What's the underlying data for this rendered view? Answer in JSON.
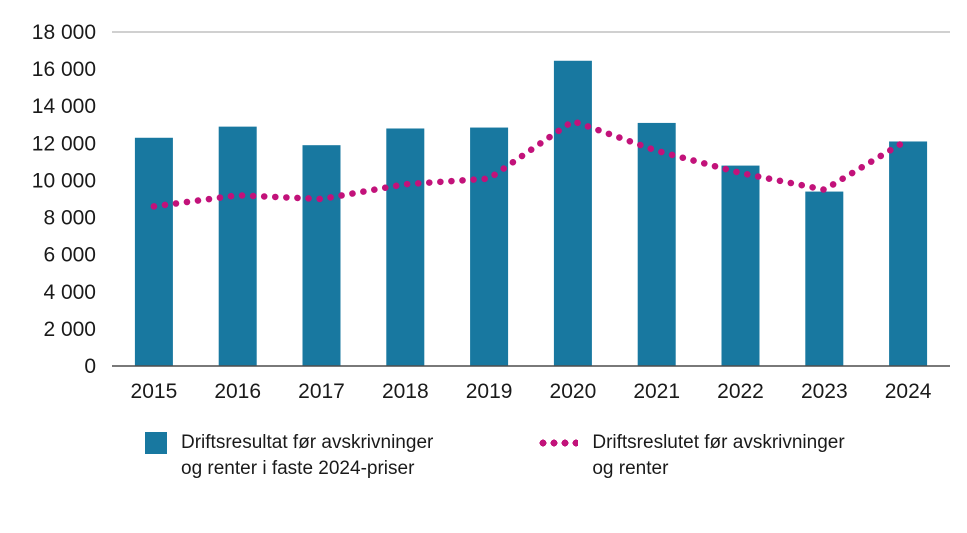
{
  "chart_data": {
    "type": "bar",
    "categories": [
      "2015",
      "2016",
      "2017",
      "2018",
      "2019",
      "2020",
      "2021",
      "2022",
      "2023",
      "2024"
    ],
    "series": [
      {
        "name": "Driftsresultat før avskrivninger og renter i faste 2024-priser",
        "type": "bar",
        "color": "#1878a0",
        "values": [
          12300,
          12900,
          11900,
          12800,
          12850,
          16450,
          13100,
          10800,
          9400,
          12100
        ]
      },
      {
        "name": "Driftsreslutet før avskrivninger og renter",
        "type": "dotted-line",
        "color": "#c2127a",
        "values": [
          8600,
          9200,
          9000,
          9800,
          10100,
          13200,
          11600,
          10400,
          9500,
          12200
        ]
      }
    ],
    "title": "",
    "xlabel": "",
    "ylabel": "",
    "ylim": [
      0,
      18000
    ],
    "y_tick_step": 2000,
    "y_ticks": [
      "0",
      "2 000",
      "4 000",
      "6 000",
      "8 000",
      "10 000",
      "12 000",
      "14 000",
      "16 000",
      "18 000"
    ],
    "grid": "top border line and zero axis line only",
    "legend_position": "bottom"
  },
  "legend": {
    "items": [
      {
        "line1": "Driftsresultat før avskrivninger",
        "line2": "og renter i faste 2024-priser",
        "marker": "bar-swatch"
      },
      {
        "line1": "Driftsreslutet før avskrivninger",
        "line2": "og renter",
        "marker": "dotted-swatch"
      }
    ]
  },
  "colors": {
    "bar": "#1878a0",
    "line": "#c2127a",
    "axis": "#4d4d4d",
    "top_border": "#b5b5b5",
    "text": "#1a1a1a"
  }
}
